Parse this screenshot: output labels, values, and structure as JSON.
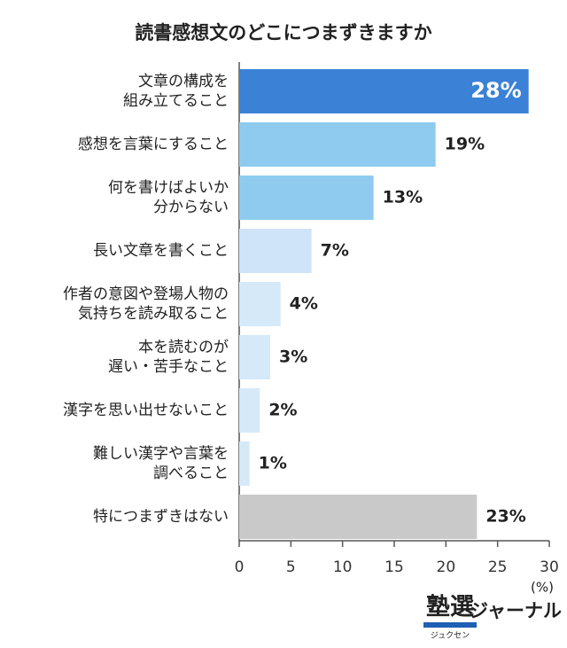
{
  "chart_data": {
    "type": "barh",
    "title": "読書感想文のどこにつまずきますか",
    "categories": [
      "文章の構成を\n組み立てること",
      "感想を言葉にすること",
      "何を書けばよいか\n分からない",
      "長い文章を書くこと",
      "作者の意図や登場人物の\n気持ちを読み取ること",
      "本を読むのが\n遅い・苦手なこと",
      "漢字を思い出せないこと",
      "難しい漢字や言葉を\n調べること",
      "特につまずきはない"
    ],
    "values": [
      28,
      19,
      13,
      7,
      4,
      3,
      2,
      1,
      23
    ],
    "value_labels": [
      "28%",
      "19%",
      "13%",
      "7%",
      "4%",
      "3%",
      "2%",
      "1%",
      "23%"
    ],
    "value_label_positions": [
      "inside",
      "outside",
      "outside",
      "outside",
      "outside",
      "outside",
      "outside",
      "outside",
      "outside"
    ],
    "colors": [
      "#3b82d6",
      "#8ecbef",
      "#8ecbef",
      "#cfe4f8",
      "#d6e9f8",
      "#d6e9f8",
      "#d6e9f8",
      "#d6e9f8",
      "#c9c9c9"
    ],
    "xlim": [
      0,
      30
    ],
    "xticks": [
      0,
      5,
      10,
      15,
      20,
      25,
      30
    ],
    "x_unit": "(%)",
    "logo": {
      "main": "塾選",
      "reading": "ジュクセン",
      "suffix": "ジャーナル"
    }
  }
}
